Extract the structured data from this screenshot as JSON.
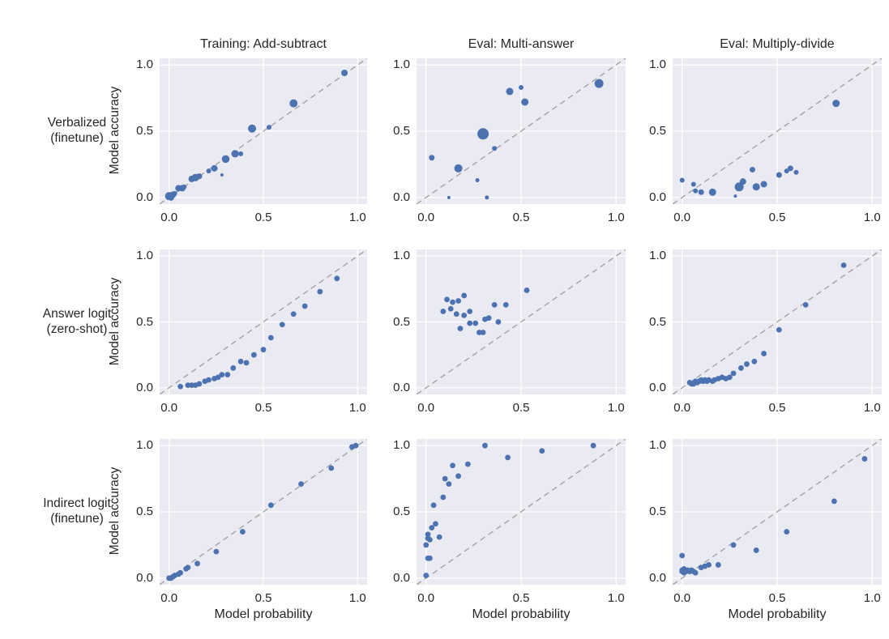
{
  "figure_title": "",
  "chart_data": {
    "type": "scatter",
    "layout": "3x3 grid of calibration scatter subplots",
    "column_titles": [
      "Training: Add-subtract",
      "Eval: Multi-answer",
      "Eval: Multiply-divide"
    ],
    "row_labels": [
      "Verbalized\n(finetune)",
      "Answer logit\n(zero-shot)",
      "Indirect logit\n(finetune)"
    ],
    "xlabel": "Model probability",
    "ylabel": "Model accuracy",
    "xlim": [
      -0.05,
      1.05
    ],
    "ylim": [
      -0.05,
      1.05
    ],
    "ticks": [
      0.0,
      0.5,
      1.0
    ],
    "tick_labels": [
      "0.0",
      "0.5",
      "1.0"
    ],
    "grid": true,
    "reference_line": "y=x dashed diagonal",
    "colors": {
      "point": "#4c72b0",
      "plot_background": "#eaeaf2",
      "gridline": "#ffffff",
      "diagonal": "#a3a3a3",
      "text": "#262626"
    },
    "default_point_radius": 3.4,
    "subplots": [
      {
        "row": 0,
        "col": 0,
        "row_label": "Verbalized (finetune)",
        "col_label": "Training: Add-subtract",
        "points": [
          [
            0.0,
            0.01,
            5
          ],
          [
            0.01,
            0.0,
            4
          ],
          [
            0.02,
            0.02,
            4
          ],
          [
            0.03,
            0.03,
            3
          ],
          [
            0.05,
            0.07,
            4
          ],
          [
            0.07,
            0.07,
            4
          ],
          [
            0.08,
            0.08,
            3
          ],
          [
            0.12,
            0.14,
            4
          ],
          [
            0.14,
            0.15,
            4.6
          ],
          [
            0.16,
            0.16,
            3.6
          ],
          [
            0.21,
            0.2,
            3
          ],
          [
            0.24,
            0.22,
            4
          ],
          [
            0.28,
            0.17,
            2
          ],
          [
            0.3,
            0.29,
            4.8
          ],
          [
            0.35,
            0.33,
            4.6
          ],
          [
            0.38,
            0.33,
            3
          ],
          [
            0.44,
            0.52,
            5
          ],
          [
            0.53,
            0.53,
            3
          ],
          [
            0.66,
            0.71,
            5
          ],
          [
            0.93,
            0.94,
            4
          ]
        ]
      },
      {
        "row": 0,
        "col": 1,
        "row_label": "Verbalized (finetune)",
        "col_label": "Eval: Multi-answer",
        "points": [
          [
            0.03,
            0.3,
            3.5
          ],
          [
            0.12,
            0.0,
            2
          ],
          [
            0.17,
            0.22,
            5
          ],
          [
            0.27,
            0.13,
            2.5
          ],
          [
            0.3,
            0.48,
            7
          ],
          [
            0.32,
            0.0,
            2.5
          ],
          [
            0.36,
            0.37,
            3
          ],
          [
            0.44,
            0.8,
            4.5
          ],
          [
            0.5,
            0.83,
            3
          ],
          [
            0.52,
            0.72,
            4.5
          ],
          [
            0.91,
            0.86,
            5.5
          ]
        ]
      },
      {
        "row": 0,
        "col": 2,
        "row_label": "Verbalized (finetune)",
        "col_label": "Eval: Multiply-divide",
        "points": [
          [
            0.0,
            0.13,
            3
          ],
          [
            0.06,
            0.1,
            3
          ],
          [
            0.07,
            0.05,
            3
          ],
          [
            0.1,
            0.04,
            3.5
          ],
          [
            0.16,
            0.04,
            4.5
          ],
          [
            0.28,
            0.01,
            2
          ],
          [
            0.3,
            0.08,
            5.5
          ],
          [
            0.32,
            0.12,
            4
          ],
          [
            0.37,
            0.21,
            3.5
          ],
          [
            0.39,
            0.08,
            4.5
          ],
          [
            0.43,
            0.1,
            4
          ],
          [
            0.51,
            0.17,
            3.5
          ],
          [
            0.55,
            0.2,
            3
          ],
          [
            0.57,
            0.22,
            3.5
          ],
          [
            0.6,
            0.19,
            3
          ],
          [
            0.81,
            0.71,
            4.5
          ]
        ]
      },
      {
        "row": 1,
        "col": 0,
        "row_label": "Answer logit (zero-shot)",
        "col_label": "Training: Add-subtract",
        "points": [
          [
            0.06,
            0.01
          ],
          [
            0.1,
            0.02
          ],
          [
            0.12,
            0.02
          ],
          [
            0.14,
            0.02
          ],
          [
            0.16,
            0.03
          ],
          [
            0.19,
            0.05
          ],
          [
            0.21,
            0.06
          ],
          [
            0.24,
            0.07
          ],
          [
            0.26,
            0.08
          ],
          [
            0.28,
            0.1
          ],
          [
            0.31,
            0.1
          ],
          [
            0.34,
            0.15
          ],
          [
            0.38,
            0.2
          ],
          [
            0.41,
            0.19
          ],
          [
            0.45,
            0.25
          ],
          [
            0.5,
            0.29
          ],
          [
            0.54,
            0.38
          ],
          [
            0.6,
            0.48
          ],
          [
            0.66,
            0.56
          ],
          [
            0.72,
            0.62
          ],
          [
            0.8,
            0.73
          ],
          [
            0.89,
            0.83
          ]
        ]
      },
      {
        "row": 1,
        "col": 1,
        "row_label": "Answer logit (zero-shot)",
        "col_label": "Eval: Multi-answer",
        "points": [
          [
            0.09,
            0.58
          ],
          [
            0.11,
            0.67
          ],
          [
            0.13,
            0.6
          ],
          [
            0.14,
            0.65
          ],
          [
            0.16,
            0.56
          ],
          [
            0.17,
            0.66
          ],
          [
            0.18,
            0.45
          ],
          [
            0.2,
            0.7
          ],
          [
            0.2,
            0.55
          ],
          [
            0.23,
            0.58
          ],
          [
            0.23,
            0.49
          ],
          [
            0.26,
            0.49
          ],
          [
            0.28,
            0.42
          ],
          [
            0.3,
            0.42
          ],
          [
            0.31,
            0.52
          ],
          [
            0.33,
            0.53
          ],
          [
            0.36,
            0.63
          ],
          [
            0.38,
            0.5
          ],
          [
            0.42,
            0.63
          ],
          [
            0.53,
            0.74
          ]
        ]
      },
      {
        "row": 1,
        "col": 2,
        "row_label": "Answer logit (zero-shot)",
        "col_label": "Eval: Multiply-divide",
        "points": [
          [
            0.04,
            0.04
          ],
          [
            0.05,
            0.03
          ],
          [
            0.06,
            0.03
          ],
          [
            0.07,
            0.05
          ],
          [
            0.08,
            0.04
          ],
          [
            0.09,
            0.05
          ],
          [
            0.1,
            0.06
          ],
          [
            0.11,
            0.05
          ],
          [
            0.12,
            0.06
          ],
          [
            0.13,
            0.05
          ],
          [
            0.14,
            0.06
          ],
          [
            0.16,
            0.05
          ],
          [
            0.17,
            0.06
          ],
          [
            0.19,
            0.07
          ],
          [
            0.21,
            0.08
          ],
          [
            0.23,
            0.07
          ],
          [
            0.25,
            0.08
          ],
          [
            0.27,
            0.11
          ],
          [
            0.31,
            0.15
          ],
          [
            0.34,
            0.18
          ],
          [
            0.38,
            0.2
          ],
          [
            0.43,
            0.26
          ],
          [
            0.51,
            0.44
          ],
          [
            0.65,
            0.63
          ],
          [
            0.85,
            0.93
          ]
        ]
      },
      {
        "row": 2,
        "col": 0,
        "row_label": "Indirect logit (finetune)",
        "col_label": "Training: Add-subtract",
        "points": [
          [
            0.0,
            0.0
          ],
          [
            0.01,
            0.0
          ],
          [
            0.02,
            0.01
          ],
          [
            0.03,
            0.02
          ],
          [
            0.05,
            0.03
          ],
          [
            0.06,
            0.04
          ],
          [
            0.09,
            0.07
          ],
          [
            0.1,
            0.08
          ],
          [
            0.15,
            0.11
          ],
          [
            0.25,
            0.2
          ],
          [
            0.39,
            0.35
          ],
          [
            0.54,
            0.55
          ],
          [
            0.7,
            0.71
          ],
          [
            0.86,
            0.83
          ],
          [
            0.97,
            0.99
          ],
          [
            0.99,
            1.0
          ]
        ]
      },
      {
        "row": 2,
        "col": 1,
        "row_label": "Indirect logit (finetune)",
        "col_label": "Eval: Multi-answer",
        "points": [
          [
            0.0,
            0.02
          ],
          [
            0.01,
            0.15
          ],
          [
            0.02,
            0.15
          ],
          [
            0.0,
            0.25
          ],
          [
            0.01,
            0.3
          ],
          [
            0.02,
            0.29
          ],
          [
            0.01,
            0.33
          ],
          [
            0.03,
            0.38
          ],
          [
            0.05,
            0.41
          ],
          [
            0.04,
            0.55
          ],
          [
            0.07,
            0.31
          ],
          [
            0.09,
            0.61
          ],
          [
            0.1,
            0.75
          ],
          [
            0.12,
            0.71
          ],
          [
            0.14,
            0.85
          ],
          [
            0.17,
            0.77
          ],
          [
            0.22,
            0.86
          ],
          [
            0.31,
            1.0
          ],
          [
            0.43,
            0.91
          ],
          [
            0.61,
            0.96
          ],
          [
            0.88,
            1.0
          ]
        ]
      },
      {
        "row": 2,
        "col": 2,
        "row_label": "Indirect logit (finetune)",
        "col_label": "Eval: Multiply-divide",
        "points": [
          [
            0.0,
            0.17
          ],
          [
            0.0,
            0.06
          ],
          [
            0.0,
            0.05
          ],
          [
            0.01,
            0.04
          ],
          [
            0.01,
            0.07
          ],
          [
            0.02,
            0.05
          ],
          [
            0.03,
            0.06
          ],
          [
            0.04,
            0.05
          ],
          [
            0.05,
            0.06
          ],
          [
            0.06,
            0.05
          ],
          [
            0.07,
            0.04
          ],
          [
            0.1,
            0.08
          ],
          [
            0.12,
            0.09
          ],
          [
            0.14,
            0.1
          ],
          [
            0.19,
            0.1
          ],
          [
            0.27,
            0.25
          ],
          [
            0.39,
            0.21
          ],
          [
            0.55,
            0.35
          ],
          [
            0.8,
            0.58
          ],
          [
            0.96,
            0.9
          ]
        ]
      }
    ]
  }
}
